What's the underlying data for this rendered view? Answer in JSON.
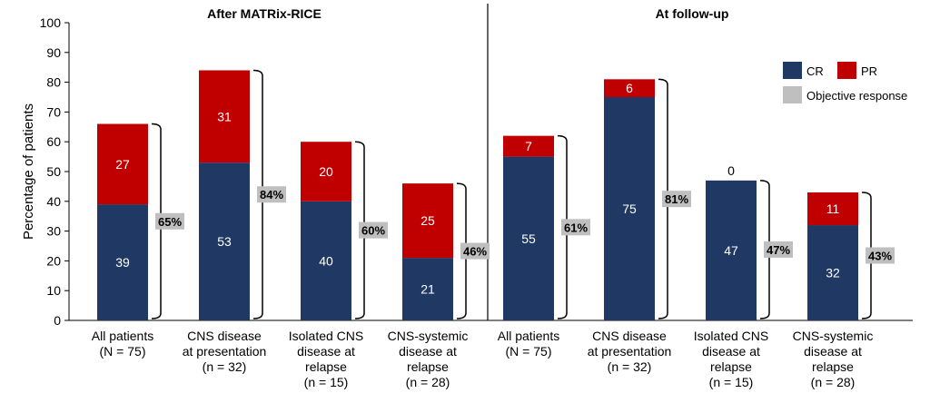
{
  "chart_data": {
    "type": "bar",
    "stacked": true,
    "ylabel": "Percentage of patients",
    "ylim": [
      0,
      100
    ],
    "yticks": [
      0,
      10,
      20,
      30,
      40,
      50,
      60,
      70,
      80,
      90,
      100
    ],
    "panels": [
      {
        "title": "After MATRix-RICE",
        "categories": [
          [
            "All patients",
            "(N = 75)"
          ],
          [
            "CNS disease",
            "at presentation",
            "(n = 32)"
          ],
          [
            "Isolated CNS",
            "disease at",
            "relapse",
            "(n = 15)"
          ],
          [
            "CNS-systemic",
            "disease at",
            "relapse",
            "(n = 28)"
          ]
        ],
        "series": [
          {
            "name": "CR",
            "values": [
              39,
              53,
              40,
              21
            ]
          },
          {
            "name": "PR",
            "values": [
              27,
              31,
              20,
              25
            ]
          }
        ],
        "objective_response": [
          "65%",
          "84%",
          "60%",
          "46%"
        ]
      },
      {
        "title": "At follow-up",
        "categories": [
          [
            "All patients",
            "(N = 75)"
          ],
          [
            "CNS disease",
            "at presentation",
            "(n = 32)"
          ],
          [
            "Isolated CNS",
            "disease at",
            "relapse",
            "(n = 15)"
          ],
          [
            "CNS-systemic",
            "disease at",
            "relapse",
            "(n = 28)"
          ]
        ],
        "series": [
          {
            "name": "CR",
            "values": [
              55,
              75,
              47,
              32
            ]
          },
          {
            "name": "PR",
            "values": [
              7,
              6,
              0,
              11
            ]
          }
        ],
        "objective_response": [
          "61%",
          "81%",
          "47%",
          "43%"
        ]
      }
    ],
    "legend": {
      "placement": "right",
      "items": [
        {
          "name": "CR",
          "color": "#203864"
        },
        {
          "name": "PR",
          "color": "#C00000"
        },
        {
          "name": "Objective response",
          "color": "#BFBFBF"
        }
      ]
    },
    "colors": {
      "CR": "#203864",
      "PR": "#C00000",
      "objective": "#BFBFBF"
    }
  }
}
